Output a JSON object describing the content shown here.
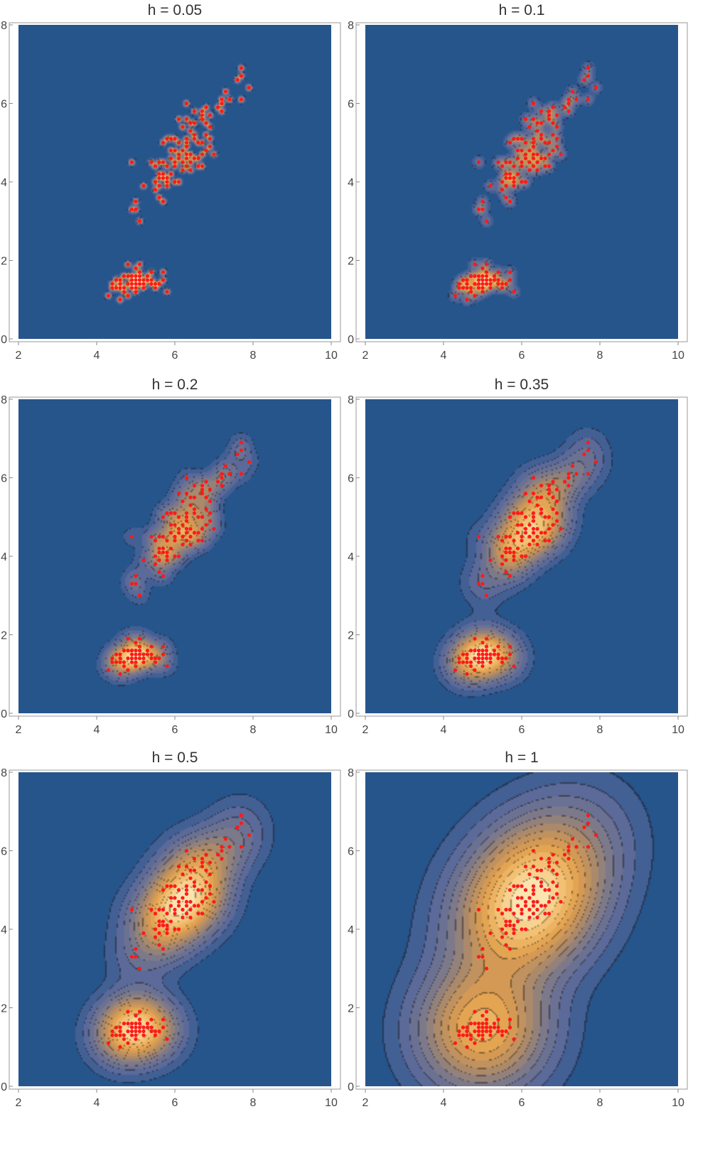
{
  "chart_data": [
    {
      "type": "contour",
      "title": "h = 0.05",
      "bandwidth": 0.05,
      "xlim": [
        2,
        10
      ],
      "ylim": [
        0,
        8
      ],
      "xticks": [
        "2",
        "4",
        "6",
        "8",
        "10"
      ],
      "yticks": [
        "0",
        "2",
        "4",
        "6",
        "8"
      ],
      "grid": false,
      "legend": "none"
    },
    {
      "type": "contour",
      "title": "h = 0.1",
      "bandwidth": 0.1,
      "xlim": [
        2,
        10
      ],
      "ylim": [
        0,
        8
      ],
      "xticks": [
        "2",
        "4",
        "6",
        "8",
        "10"
      ],
      "yticks": [
        "0",
        "2",
        "4",
        "6",
        "8"
      ],
      "grid": false,
      "legend": "none"
    },
    {
      "type": "contour",
      "title": "h = 0.2",
      "bandwidth": 0.2,
      "xlim": [
        2,
        10
      ],
      "ylim": [
        0,
        8
      ],
      "xticks": [
        "2",
        "4",
        "6",
        "8",
        "10"
      ],
      "yticks": [
        "0",
        "2",
        "4",
        "6",
        "8"
      ],
      "grid": false,
      "legend": "none"
    },
    {
      "type": "contour",
      "title": "h = 0.35",
      "bandwidth": 0.35,
      "xlim": [
        2,
        10
      ],
      "ylim": [
        0,
        8
      ],
      "xticks": [
        "2",
        "4",
        "6",
        "8",
        "10"
      ],
      "yticks": [
        "0",
        "2",
        "4",
        "6",
        "8"
      ],
      "grid": false,
      "legend": "none"
    },
    {
      "type": "contour",
      "title": "h = 0.5",
      "bandwidth": 0.5,
      "xlim": [
        2,
        10
      ],
      "ylim": [
        0,
        8
      ],
      "xticks": [
        "2",
        "4",
        "6",
        "8",
        "10"
      ],
      "yticks": [
        "0",
        "2",
        "4",
        "6",
        "8"
      ],
      "grid": false,
      "legend": "none"
    },
    {
      "type": "contour",
      "title": "h = 1",
      "bandwidth": 1,
      "xlim": [
        2,
        10
      ],
      "ylim": [
        0,
        8
      ],
      "xticks": [
        "2",
        "4",
        "6",
        "8",
        "10"
      ],
      "yticks": [
        "0",
        "2",
        "4",
        "6",
        "8"
      ],
      "grid": false,
      "legend": "none"
    }
  ],
  "points": [
    [
      4.3,
      1.1
    ],
    [
      4.4,
      1.3
    ],
    [
      4.4,
      1.4
    ],
    [
      4.5,
      1.3
    ],
    [
      4.5,
      1.5
    ],
    [
      4.6,
      1.4
    ],
    [
      4.6,
      1.3
    ],
    [
      4.6,
      1.5
    ],
    [
      4.7,
      1.3
    ],
    [
      4.7,
      1.6
    ],
    [
      4.8,
      1.4
    ],
    [
      4.8,
      1.6
    ],
    [
      4.8,
      1.9
    ],
    [
      4.8,
      1.1
    ],
    [
      4.9,
      1.4
    ],
    [
      4.9,
      1.5
    ],
    [
      4.9,
      1.6
    ],
    [
      5.0,
      1.2
    ],
    [
      5.0,
      1.3
    ],
    [
      5.0,
      1.4
    ],
    [
      5.0,
      1.5
    ],
    [
      5.0,
      1.6
    ],
    [
      5.0,
      1.8
    ],
    [
      5.1,
      1.4
    ],
    [
      5.1,
      1.5
    ],
    [
      5.1,
      1.7
    ],
    [
      5.1,
      1.9
    ],
    [
      5.2,
      1.4
    ],
    [
      5.2,
      1.5
    ],
    [
      5.3,
      1.5
    ],
    [
      5.4,
      1.4
    ],
    [
      5.4,
      1.5
    ],
    [
      5.4,
      1.7
    ],
    [
      5.5,
      1.3
    ],
    [
      5.5,
      1.4
    ],
    [
      5.7,
      1.5
    ],
    [
      5.7,
      1.7
    ],
    [
      5.8,
      1.2
    ],
    [
      5.1,
      1.6
    ],
    [
      4.9,
      1.3
    ],
    [
      5.2,
      1.3
    ],
    [
      5.6,
      1.4
    ],
    [
      4.6,
      1.0
    ],
    [
      5.3,
      1.6
    ],
    [
      4.7,
      1.2
    ],
    [
      4.9,
      4.5
    ],
    [
      4.9,
      3.3
    ],
    [
      5.0,
      3.5
    ],
    [
      5.0,
      3.3
    ],
    [
      5.1,
      3.0
    ],
    [
      5.2,
      3.9
    ],
    [
      5.4,
      4.5
    ],
    [
      5.5,
      4.0
    ],
    [
      5.5,
      4.4
    ],
    [
      5.5,
      3.8
    ],
    [
      5.6,
      3.6
    ],
    [
      5.6,
      3.9
    ],
    [
      5.6,
      4.1
    ],
    [
      5.6,
      4.2
    ],
    [
      5.6,
      4.5
    ],
    [
      5.7,
      3.5
    ],
    [
      5.7,
      4.2
    ],
    [
      5.7,
      4.5
    ],
    [
      5.7,
      4.1
    ],
    [
      5.7,
      5.0
    ],
    [
      5.8,
      3.9
    ],
    [
      5.8,
      4.0
    ],
    [
      5.8,
      4.1
    ],
    [
      5.8,
      5.1
    ],
    [
      5.9,
      4.2
    ],
    [
      5.9,
      4.8
    ],
    [
      5.9,
      5.1
    ],
    [
      6.0,
      4.0
    ],
    [
      6.0,
      4.5
    ],
    [
      6.0,
      5.1
    ],
    [
      6.0,
      4.8
    ],
    [
      6.1,
      4.0
    ],
    [
      6.1,
      4.7
    ],
    [
      6.1,
      4.6
    ],
    [
      6.1,
      5.6
    ],
    [
      6.2,
      4.3
    ],
    [
      6.2,
      4.5
    ],
    [
      6.2,
      5.4
    ],
    [
      6.3,
      4.4
    ],
    [
      6.3,
      4.7
    ],
    [
      6.3,
      4.9
    ],
    [
      6.3,
      5.0
    ],
    [
      6.3,
      5.1
    ],
    [
      6.3,
      5.6
    ],
    [
      6.3,
      6.0
    ],
    [
      6.4,
      4.3
    ],
    [
      6.4,
      4.5
    ],
    [
      6.4,
      5.3
    ],
    [
      6.4,
      5.5
    ],
    [
      6.5,
      4.6
    ],
    [
      6.5,
      5.1
    ],
    [
      6.5,
      5.2
    ],
    [
      6.5,
      5.5
    ],
    [
      6.5,
      5.8
    ],
    [
      6.6,
      4.4
    ],
    [
      6.6,
      4.6
    ],
    [
      6.7,
      4.4
    ],
    [
      6.7,
      4.7
    ],
    [
      6.7,
      5.0
    ],
    [
      6.7,
      5.6
    ],
    [
      6.7,
      5.7
    ],
    [
      6.7,
      5.8
    ],
    [
      6.8,
      4.8
    ],
    [
      6.8,
      5.5
    ],
    [
      6.8,
      5.9
    ],
    [
      6.9,
      4.9
    ],
    [
      6.9,
      5.1
    ],
    [
      6.9,
      5.4
    ],
    [
      6.9,
      5.7
    ],
    [
      7.0,
      4.7
    ],
    [
      7.1,
      5.9
    ],
    [
      7.2,
      5.8
    ],
    [
      7.2,
      6.0
    ],
    [
      7.2,
      6.1
    ],
    [
      7.3,
      6.3
    ],
    [
      7.4,
      6.1
    ],
    [
      7.6,
      6.6
    ],
    [
      7.7,
      6.1
    ],
    [
      7.7,
      6.7
    ],
    [
      7.7,
      6.9
    ],
    [
      7.9,
      6.4
    ],
    [
      6.0,
      4.4
    ],
    [
      6.1,
      5.0
    ],
    [
      6.4,
      4.7
    ],
    [
      6.6,
      5.0
    ],
    [
      5.9,
      4.6
    ],
    [
      6.2,
      4.8
    ],
    [
      6.8,
      5.2
    ],
    [
      5.8,
      4.4
    ],
    [
      6.3,
      4.6
    ]
  ]
}
